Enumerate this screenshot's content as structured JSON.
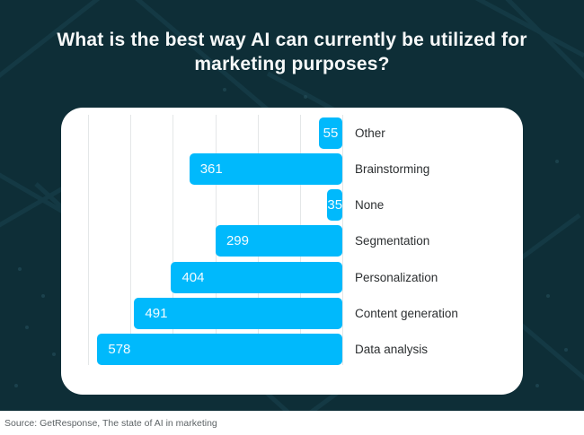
{
  "title": "What is the best way AI can currently be utilized for marketing purposes?",
  "source": "Source: GetResponse, The state of AI in marketing",
  "colors": {
    "background": "#0e2e37",
    "background_pattern_line": "#1c4854",
    "card": "#ffffff",
    "bar": "#00b9fc",
    "title_text": "#f7f9f9",
    "category_text": "#2c2f31",
    "value_text": "#ffffff",
    "gridline": "#e4e7e8",
    "source_text": "#5d6366"
  },
  "chart_data": {
    "type": "bar",
    "orientation": "horizontal",
    "bars_aligned": "right",
    "value_axis_reversed": true,
    "categories": [
      "Other",
      "Brainstorming",
      "None",
      "Segmentation",
      "Personalization",
      "Content generation",
      "Data analysis"
    ],
    "values": [
      55,
      361,
      35,
      299,
      404,
      491,
      578
    ],
    "title": "What is the best way AI can currently be utilized for marketing purposes?",
    "xlabel": "",
    "ylabel": "",
    "xlim": [
      0,
      600
    ],
    "gridline_step": 100,
    "grid": true,
    "tick_labels_shown": false,
    "value_labels": "inside-start",
    "category_labels_position": "right",
    "legend": "none"
  }
}
